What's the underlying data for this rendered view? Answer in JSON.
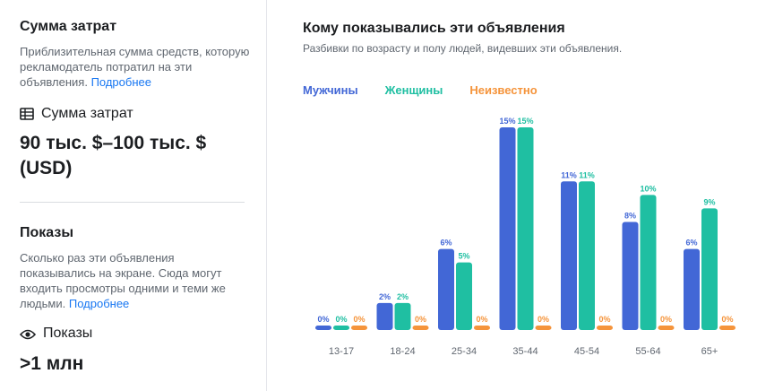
{
  "spend": {
    "title": "Сумма затрат",
    "description": "Приблизительная сумма средств, которую рекламодатель потратил на эти объявления.",
    "link": "Подробнее",
    "metric_label": "Сумма затрат",
    "metric_icon": "money-icon",
    "value": "90 тыс. $–100 тыс. $ (USD)"
  },
  "impressions": {
    "title": "Показы",
    "description": "Сколько раз эти объявления показывались на экране. Сюда могут входить просмотры одними и теми же людьми.",
    "link": "Подробнее",
    "metric_label": "Показы",
    "metric_icon": "eye-icon",
    "value": ">1 млн"
  },
  "audience": {
    "title": "Кому показывались эти объявления",
    "subtitle": "Разбивки по возрасту и полу людей, видевших эти объявления."
  },
  "chart_data": {
    "type": "bar",
    "categories": [
      "13-17",
      "18-24",
      "25-34",
      "35-44",
      "45-54",
      "55-64",
      "65+"
    ],
    "series": [
      {
        "name": "Мужчины",
        "color": "#4267d6",
        "values": [
          0,
          2,
          6,
          15,
          11,
          8,
          6
        ]
      },
      {
        "name": "Женщины",
        "color": "#1fbfa2",
        "values": [
          0,
          2,
          5,
          15,
          11,
          10,
          9
        ]
      },
      {
        "name": "Неизвестно",
        "color": "#f5943b",
        "values": [
          0,
          0,
          0,
          0,
          0,
          0,
          0
        ]
      }
    ],
    "value_suffix": "%",
    "ylim": [
      0,
      15
    ],
    "legend": "top-left",
    "grid": false
  }
}
